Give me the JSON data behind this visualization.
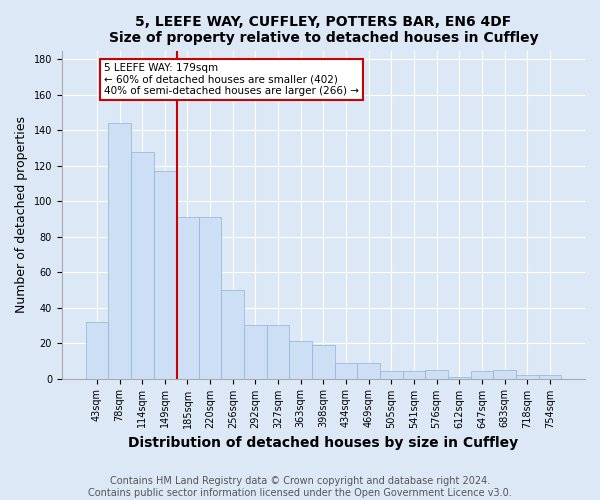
{
  "title": "5, LEEFE WAY, CUFFLEY, POTTERS BAR, EN6 4DF",
  "subtitle": "Size of property relative to detached houses in Cuffley",
  "xlabel": "Distribution of detached houses by size in Cuffley",
  "ylabel": "Number of detached properties",
  "categories": [
    "43sqm",
    "78sqm",
    "114sqm",
    "149sqm",
    "185sqm",
    "220sqm",
    "256sqm",
    "292sqm",
    "327sqm",
    "363sqm",
    "398sqm",
    "434sqm",
    "469sqm",
    "505sqm",
    "541sqm",
    "576sqm",
    "612sqm",
    "647sqm",
    "683sqm",
    "718sqm",
    "754sqm"
  ],
  "values": [
    32,
    144,
    128,
    117,
    91,
    91,
    50,
    30,
    30,
    21,
    19,
    9,
    9,
    4,
    4,
    5,
    1,
    4,
    5,
    2,
    2
  ],
  "bar_color": "#ccdff5",
  "bar_edge_color": "#8ab4d8",
  "red_line_x": 3.55,
  "red_line_label": "5 LEEFE WAY: 179sqm",
  "annotation_line1": "← 60% of detached houses are smaller (402)",
  "annotation_line2": "40% of semi-detached houses are larger (266) →",
  "annotation_box_facecolor": "#ffffff",
  "annotation_box_edgecolor": "#cc0000",
  "red_line_color": "#cc0000",
  "ylim": [
    0,
    185
  ],
  "yticks": [
    0,
    20,
    40,
    60,
    80,
    100,
    120,
    140,
    160,
    180
  ],
  "footer_line1": "Contains HM Land Registry data © Crown copyright and database right 2024.",
  "footer_line2": "Contains public sector information licensed under the Open Government Licence v3.0.",
  "bg_color": "#dce8f5",
  "fig_bg_color": "#dce8f5",
  "title_fontsize": 10,
  "axis_label_fontsize": 9,
  "tick_fontsize": 7,
  "footer_fontsize": 7,
  "annot_fontsize": 7.5
}
